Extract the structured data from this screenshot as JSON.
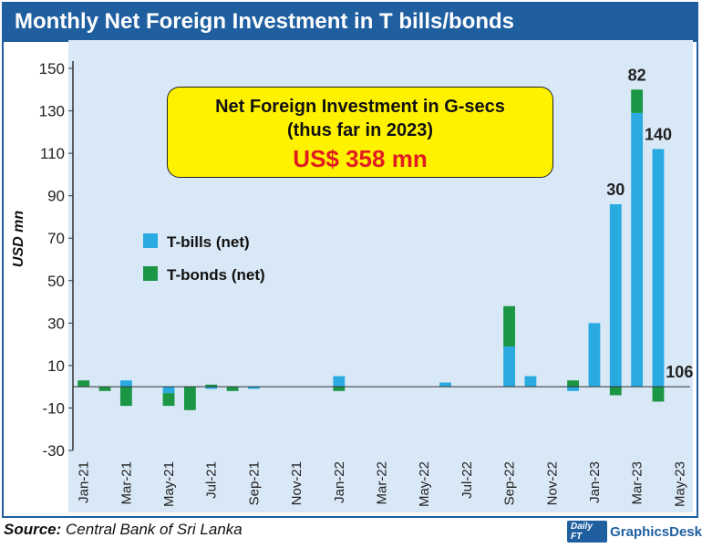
{
  "header": {
    "title": "Monthly Net Foreign Investment in T bills/bonds"
  },
  "callout": {
    "line1": "Net Foreign Investment in G-secs",
    "line2": "(thus far in 2023)",
    "line3": "US$ 358 mn"
  },
  "footer": {
    "source_label": "Source:",
    "source_text": "Central Bank of Sri Lanka",
    "credit_logo": "Daily FT",
    "credit_text": "GraphicsDesk"
  },
  "colors": {
    "tbills": "#29abe2",
    "tbonds": "#1a9645",
    "frame": "#1f5fa0",
    "plot_bg": "#d9e8f6",
    "callout_bg": "#fff200",
    "callout_value": "#e11b22"
  },
  "chart_data": {
    "type": "bar",
    "stacked": true,
    "categories": [
      "Jan-21",
      "Feb-21",
      "Mar-21",
      "Apr-21",
      "May-21",
      "Jun-21",
      "Jul-21",
      "Aug-21",
      "Sep-21",
      "Oct-21",
      "Nov-21",
      "Dec-21",
      "Jan-22",
      "Feb-22",
      "Mar-22",
      "Apr-22",
      "May-22",
      "Jun-22",
      "Jul-22",
      "Aug-22",
      "Sep-22",
      "Oct-22",
      "Nov-22",
      "Dec-22",
      "Jan-23",
      "Feb-23",
      "Mar-23",
      "Apr-23",
      "May-23"
    ],
    "x_tick_labels": [
      "Jan-21",
      "Mar-21",
      "May-21",
      "Jul-21",
      "Sep-21",
      "Nov-21",
      "Jan-22",
      "Mar-22",
      "May-22",
      "Jul-22",
      "Sep-22",
      "Nov-22",
      "Jan-23",
      "Mar-23",
      "May-23"
    ],
    "series": [
      {
        "name": "T-bills (net)",
        "color": "#29abe2",
        "values": [
          0,
          0,
          3,
          0,
          -3,
          0,
          -1,
          0,
          -1,
          0,
          0,
          0,
          5,
          0,
          0,
          0,
          0,
          2,
          0,
          0,
          19,
          5,
          0,
          -2,
          30,
          86,
          129,
          112,
          0
        ]
      },
      {
        "name": "T-bonds (net)",
        "color": "#1a9645",
        "values": [
          3,
          -2,
          -9,
          0,
          -6,
          -11,
          1,
          -2,
          0,
          0,
          0,
          0,
          -2,
          0,
          0,
          0,
          0,
          0,
          0,
          0,
          19,
          0,
          0,
          3,
          0,
          -4,
          11,
          -7,
          0
        ]
      }
    ],
    "data_labels": [
      {
        "category": "Feb-23",
        "text": "30"
      },
      {
        "category": "Mar-23",
        "text": "82"
      },
      {
        "category": "Apr-23",
        "text": "140"
      },
      {
        "category": "May-23",
        "text": "106"
      }
    ],
    "ylabel": "USD  mn",
    "xlabel": "",
    "ylim": [
      -30,
      155
    ],
    "y_ticks": [
      150,
      130,
      110,
      90,
      70,
      50,
      30,
      10,
      -10,
      -30
    ],
    "grid": false,
    "legend_position": "left-middle"
  }
}
